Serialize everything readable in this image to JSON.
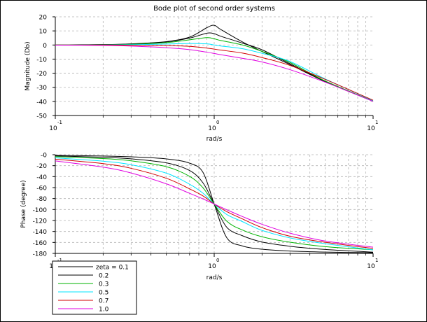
{
  "chart_data": [
    {
      "type": "line",
      "title": "Bode plot of second order systems",
      "xlabel": "rad/s",
      "ylabel": "Magnitude (Db)",
      "x_scale": "log",
      "xlim": [
        0.1,
        10
      ],
      "ylim": [
        -50,
        20
      ],
      "x_ticks": [
        {
          "base": "10",
          "exp": "-1"
        },
        {
          "base": "10",
          "exp": "0"
        },
        {
          "base": "10",
          "exp": "1"
        }
      ],
      "y_ticks": [
        "20",
        "10",
        "0",
        "-10",
        "-20",
        "-30",
        "-40",
        "-50"
      ],
      "y_tick_values": [
        20,
        10,
        0,
        -10,
        -20,
        -30,
        -40,
        -50
      ],
      "grid": true,
      "x": [
        0.1,
        0.2,
        0.3,
        0.5,
        0.7,
        0.9,
        1.0,
        1.1,
        1.5,
        2.0,
        3.0,
        5.0,
        10.0
      ],
      "series": [
        {
          "zeta": 0.1,
          "values": [
            0.1,
            0.3,
            0.8,
            2.4,
            5.6,
            12.3,
            14.0,
            11.0,
            2.3,
            -4.6,
            -13.9,
            -26.0,
            -39.9
          ]
        },
        {
          "zeta": 0.2,
          "values": [
            0.1,
            0.3,
            0.7,
            2.2,
            4.9,
            8.4,
            8.0,
            6.2,
            1.4,
            -3.4,
            -13.3,
            -25.6,
            -39.9
          ]
        },
        {
          "zeta": 0.3,
          "values": [
            0.1,
            0.2,
            0.5,
            1.7,
            3.7,
            5.2,
            4.4,
            3.2,
            0.1,
            -4.5,
            -12.4,
            -25.6,
            -39.8
          ]
        },
        {
          "zeta": 0.5,
          "values": [
            0.0,
            0.1,
            0.2,
            0.7,
            1.1,
            0.8,
            0.0,
            -0.7,
            -2.6,
            -5.9,
            -11.7,
            -24.1,
            -39.5
          ]
        },
        {
          "zeta": 0.7,
          "values": [
            0.0,
            0.0,
            -0.1,
            -0.4,
            -1.0,
            -2.2,
            -2.9,
            -3.6,
            -5.7,
            -8.9,
            -14.5,
            -24.4,
            -39.2
          ]
        },
        {
          "zeta": 1.0,
          "values": [
            -0.1,
            -0.3,
            -0.8,
            -1.9,
            -3.3,
            -5.1,
            -6.0,
            -6.9,
            -9.4,
            -12.0,
            -17.5,
            -26.4,
            -40.0
          ]
        }
      ]
    },
    {
      "type": "line",
      "xlabel": "rad/s",
      "ylabel": "Phase (degree)",
      "x_scale": "log",
      "xlim": [
        0.1,
        10
      ],
      "ylim": [
        -180,
        0
      ],
      "x_ticks": [
        {
          "base": "10",
          "exp": "-1"
        },
        {
          "base": "10",
          "exp": "0"
        },
        {
          "base": "10",
          "exp": "1"
        }
      ],
      "y_ticks": [
        "-0",
        "-20",
        "-40",
        "-60",
        "-80",
        "-100",
        "-120",
        "-140",
        "-160",
        "-180"
      ],
      "y_tick_values": [
        0,
        -20,
        -40,
        -60,
        -80,
        -100,
        -120,
        -140,
        -160,
        -180
      ],
      "grid": true,
      "legend": {
        "placement": "bottom-left",
        "entries": [
          "zeta = 0.1",
          "0.2",
          "0.3",
          "0.5",
          "0.7",
          "1.0"
        ]
      },
      "x": [
        0.1,
        0.2,
        0.3,
        0.5,
        0.7,
        0.85,
        1.0,
        1.2,
        1.5,
        2.0,
        3.0,
        5.0,
        10.0
      ],
      "series": [
        {
          "zeta": 0.1,
          "values": [
            -1.2,
            -2.4,
            -3.8,
            -7.6,
            -15.4,
            -32.2,
            -90,
            -151.4,
            -166.3,
            -172.4,
            -175.7,
            -177.6,
            -178.8
          ]
        },
        {
          "zeta": 0.2,
          "values": [
            -2.3,
            -4.8,
            -7.5,
            -14.9,
            -28.8,
            -51.4,
            -90,
            -132.4,
            -147.6,
            -159.2,
            -167.0,
            -172.8,
            -177.7
          ]
        },
        {
          "zeta": 0.3,
          "values": [
            -3.5,
            -7.1,
            -11.2,
            -21.8,
            -39.5,
            -60.4,
            -90,
            -121.3,
            -137.2,
            -149.7,
            -159.6,
            -167.7,
            -173.3
          ]
        },
        {
          "zeta": 0.5,
          "values": [
            -5.8,
            -11.8,
            -18.3,
            -33.7,
            -53.8,
            -70.2,
            -90,
            -109.1,
            -121.9,
            -138.0,
            -151.7,
            -162.3,
            -173.6
          ]
        },
        {
          "zeta": 0.7,
          "values": [
            -8.1,
            -16.3,
            -24.8,
            -43.0,
            -62.3,
            -75.2,
            -90,
            -103.8,
            -116.9,
            -133.0,
            -148.7,
            -159.8,
            -171.0
          ]
        },
        {
          "zeta": 1.0,
          "values": [
            -11.4,
            -22.6,
            -33.4,
            -53.1,
            -70.4,
            -80.6,
            -90,
            -100.4,
            -112.6,
            -126.9,
            -143.1,
            -157.4,
            -168.6
          ]
        }
      ]
    }
  ],
  "series_colors": [
    "#000000",
    "#000000",
    "#00b300",
    "#00e5ff",
    "#d00000",
    "#e000e0"
  ]
}
